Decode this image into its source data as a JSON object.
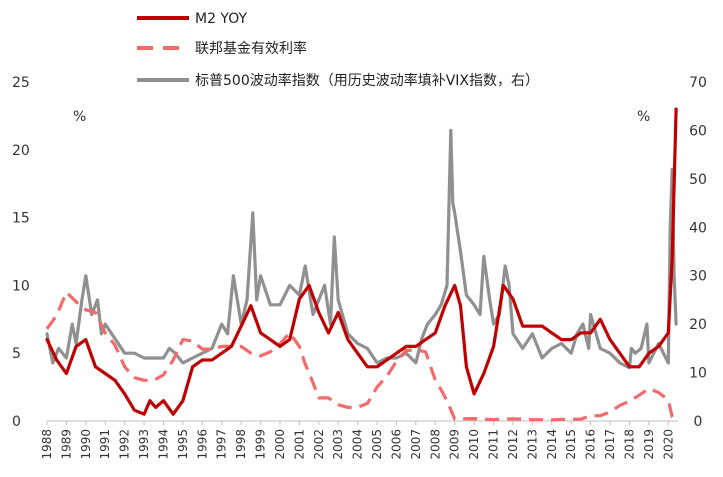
{
  "chart_data": {
    "type": "line",
    "y_left": {
      "min": 0,
      "max": 25,
      "ticks": [
        0,
        5,
        10,
        15,
        20,
        25
      ],
      "unit": "%"
    },
    "y_right": {
      "min": 0,
      "max": 70,
      "ticks": [
        0,
        10,
        20,
        30,
        40,
        50,
        60,
        70
      ],
      "unit": "%"
    },
    "x": {
      "min": 1988,
      "max": 2020.5,
      "tick_years": [
        1988,
        1989,
        1990,
        1991,
        1992,
        1993,
        1994,
        1995,
        1996,
        1997,
        1998,
        1999,
        2000,
        2001,
        2002,
        2003,
        2004,
        2005,
        2006,
        2007,
        2008,
        2009,
        2010,
        2011,
        2012,
        2013,
        2014,
        2015,
        2016,
        2017,
        2018,
        2019,
        2020
      ],
      "tick_labels": [
        "1988",
        "1989",
        "1990",
        "1991",
        "1992",
        "1993",
        "1994",
        "1995",
        "1996",
        "1997",
        "1998",
        "1999",
        "2000",
        "2001",
        "2002",
        "2003",
        "2004",
        "2005",
        "2006",
        "2007",
        "2008",
        "2009",
        "2010",
        "2011",
        "2012",
        "2013",
        "2014",
        "2015",
        "2016",
        "2017",
        "2018",
        "2019",
        "2020"
      ]
    },
    "series": [
      {
        "name": "M2 YOY",
        "axis": "left",
        "color": "#c00000",
        "style": "solid",
        "x": [
          1988.0,
          1988.5,
          1989.0,
          1989.5,
          1990.0,
          1990.5,
          1991.0,
          1991.5,
          1992.0,
          1992.5,
          1993.0,
          1993.3,
          1993.6,
          1994.0,
          1994.5,
          1995.0,
          1995.5,
          1996.0,
          1996.5,
          1997.0,
          1997.5,
          1998.0,
          1998.5,
          1999.0,
          1999.5,
          2000.0,
          2000.5,
          2001.0,
          2001.5,
          2002.0,
          2002.5,
          2003.0,
          2003.5,
          2004.0,
          2004.5,
          2005.0,
          2005.5,
          2006.0,
          2006.5,
          2007.0,
          2007.5,
          2008.0,
          2008.5,
          2009.0,
          2009.3,
          2009.6,
          2010.0,
          2010.5,
          2011.0,
          2011.5,
          2012.0,
          2012.5,
          2013.0,
          2013.5,
          2014.0,
          2014.5,
          2015.0,
          2015.5,
          2016.0,
          2016.5,
          2017.0,
          2017.5,
          2018.0,
          2018.5,
          2019.0,
          2019.5,
          2020.0,
          2020.2,
          2020.4
        ],
        "y": [
          6.0,
          4.5,
          3.5,
          5.5,
          6.0,
          4.0,
          3.5,
          3.0,
          2.0,
          0.8,
          0.5,
          1.5,
          1.0,
          1.5,
          0.5,
          1.5,
          4.0,
          4.5,
          4.5,
          5.0,
          5.5,
          7.0,
          8.5,
          6.5,
          6.0,
          5.5,
          6.0,
          9.0,
          10.0,
          8.0,
          6.5,
          8.0,
          6.0,
          5.0,
          4.0,
          4.0,
          4.5,
          5.0,
          5.5,
          5.5,
          6.0,
          6.5,
          8.5,
          10.0,
          8.5,
          4.0,
          2.0,
          3.5,
          5.5,
          10.0,
          9.0,
          7.0,
          7.0,
          7.0,
          6.5,
          6.0,
          6.0,
          6.5,
          6.5,
          7.5,
          6.0,
          5.0,
          4.0,
          4.0,
          5.0,
          5.5,
          6.5,
          12.0,
          23.0
        ]
      },
      {
        "name": "联邦基金有效利率",
        "axis": "left",
        "color": "#f26a6a",
        "style": "dashed",
        "x": [
          1988.0,
          1988.5,
          1989.0,
          1989.5,
          1990.0,
          1990.5,
          1991.0,
          1991.5,
          1992.0,
          1992.5,
          1993.0,
          1993.5,
          1994.0,
          1994.5,
          1995.0,
          1995.5,
          1996.0,
          1996.5,
          1997.0,
          1997.5,
          1998.0,
          1998.5,
          1999.0,
          1999.5,
          2000.0,
          2000.5,
          2001.0,
          2001.3,
          2001.6,
          2002.0,
          2002.5,
          2003.0,
          2003.5,
          2004.0,
          2004.5,
          2005.0,
          2005.5,
          2006.0,
          2006.5,
          2007.0,
          2007.5,
          2008.0,
          2008.3,
          2008.6,
          2009.0,
          2010.0,
          2011.0,
          2012.0,
          2013.0,
          2014.0,
          2015.0,
          2015.5,
          2016.0,
          2016.5,
          2017.0,
          2017.5,
          2018.0,
          2018.5,
          2019.0,
          2019.5,
          2020.0,
          2020.2,
          2020.4
        ],
        "y": [
          6.8,
          7.8,
          9.5,
          8.8,
          8.2,
          8.0,
          6.5,
          5.6,
          4.0,
          3.2,
          3.0,
          3.0,
          3.4,
          4.5,
          6.0,
          5.9,
          5.3,
          5.3,
          5.5,
          5.5,
          5.5,
          5.0,
          4.8,
          5.1,
          5.7,
          6.5,
          5.5,
          4.2,
          3.2,
          1.7,
          1.7,
          1.2,
          1.0,
          1.0,
          1.3,
          2.5,
          3.3,
          4.4,
          5.2,
          5.25,
          5.1,
          3.0,
          2.3,
          1.5,
          0.15,
          0.18,
          0.1,
          0.16,
          0.1,
          0.09,
          0.13,
          0.14,
          0.38,
          0.4,
          0.66,
          1.15,
          1.45,
          1.9,
          2.4,
          2.1,
          1.55,
          0.3,
          0.05
        ]
      },
      {
        "name": "标普500波动率指数（用历史波动率填补VIX指数，右）",
        "axis": "right",
        "color": "#909090",
        "style": "solid",
        "x": [
          1988.0,
          1988.3,
          1988.6,
          1989.0,
          1989.3,
          1989.5,
          1989.8,
          1990.0,
          1990.3,
          1990.6,
          1990.8,
          1991.0,
          1991.5,
          1992.0,
          1992.5,
          1993.0,
          1993.5,
          1994.0,
          1994.3,
          1994.6,
          1995.0,
          1995.5,
          1996.0,
          1996.5,
          1997.0,
          1997.3,
          1997.6,
          1998.0,
          1998.3,
          1998.6,
          1998.8,
          1999.0,
          1999.5,
          2000.0,
          2000.5,
          2001.0,
          2001.3,
          2001.7,
          2002.0,
          2002.3,
          2002.6,
          2002.8,
          2003.0,
          2003.5,
          2004.0,
          2004.5,
          2005.0,
          2005.5,
          2006.0,
          2006.5,
          2007.0,
          2007.3,
          2007.6,
          2008.0,
          2008.3,
          2008.6,
          2008.8,
          2008.9,
          2009.0,
          2009.3,
          2009.6,
          2010.0,
          2010.3,
          2010.5,
          2010.8,
          2011.0,
          2011.3,
          2011.6,
          2011.8,
          2012.0,
          2012.5,
          2013.0,
          2013.5,
          2014.0,
          2014.5,
          2015.0,
          2015.3,
          2015.6,
          2015.9,
          2016.0,
          2016.5,
          2017.0,
          2017.5,
          2018.0,
          2018.1,
          2018.3,
          2018.6,
          2018.9,
          2019.0,
          2019.5,
          2020.0,
          2020.1,
          2020.2,
          2020.3,
          2020.4
        ],
        "y": [
          18,
          12,
          15,
          13,
          20,
          16,
          25,
          30,
          22,
          25,
          18,
          20,
          17,
          14,
          14,
          13,
          13,
          13,
          15,
          14,
          12,
          13,
          14,
          15,
          20,
          18,
          30,
          20,
          25,
          43,
          25,
          30,
          24,
          24,
          28,
          26,
          32,
          22,
          25,
          28,
          20,
          38,
          25,
          18,
          16,
          15,
          12,
          13,
          13,
          14,
          12,
          17,
          20,
          22,
          24,
          28,
          60,
          45,
          43,
          35,
          26,
          24,
          22,
          34,
          25,
          20,
          22,
          32,
          28,
          18,
          15,
          18,
          13,
          15,
          16,
          14,
          18,
          20,
          15,
          22,
          15,
          14,
          12,
          11,
          15,
          14,
          15,
          20,
          12,
          16,
          12,
          40,
          52,
          30,
          20
        ]
      }
    ]
  },
  "legend": {
    "items": [
      {
        "label": "M2 YOY",
        "color": "#c00000",
        "style": "solid"
      },
      {
        "label": "联邦基金有效利率",
        "color": "#f26a6a",
        "style": "dashed"
      },
      {
        "label": "标普500波动率指数（用历史波动率填补VIX指数，右）",
        "color": "#909090",
        "style": "solid"
      }
    ],
    "placement": "top"
  }
}
